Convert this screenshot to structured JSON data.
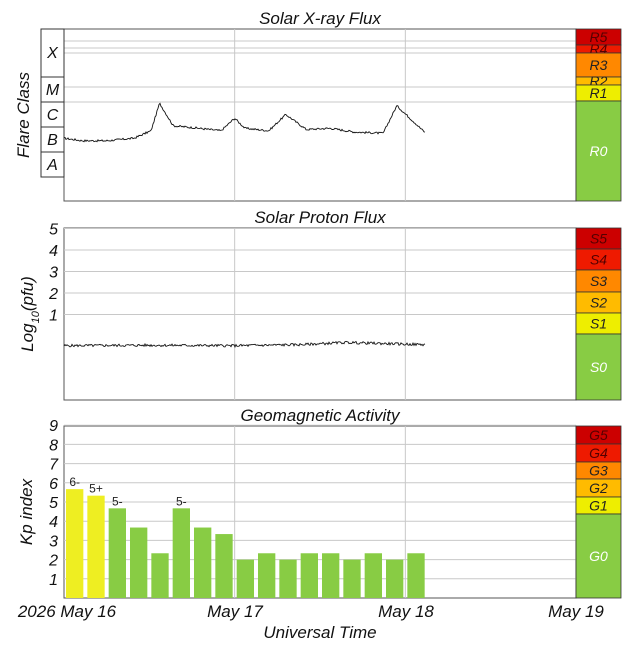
{
  "chart_data": [
    {
      "type": "area",
      "title": "Solar X-ray Flux",
      "ylabel": "Flare Class",
      "class_labels": [
        "X",
        "M",
        "C",
        "B",
        "A"
      ],
      "scale": [
        {
          "label": "R5",
          "color": "#cc0000"
        },
        {
          "label": "R4",
          "color": "#ee1a00"
        },
        {
          "label": "R3",
          "color": "#ff8800"
        },
        {
          "label": "R2",
          "color": "#ffbb00"
        },
        {
          "label": "R1",
          "color": "#eeee00"
        },
        {
          "label": "R0",
          "color": "#88cc44"
        }
      ],
      "x_days": [
        0,
        0.11,
        0.25,
        0.41,
        0.51,
        0.56,
        0.64,
        0.79,
        0.92,
        1.0,
        1.06,
        1.2,
        1.3,
        1.42,
        1.56,
        1.7,
        1.87,
        1.95,
        2.12
      ],
      "y_class": [
        2.55,
        2.45,
        2.45,
        2.55,
        2.85,
        3.95,
        3.05,
        2.95,
        2.85,
        3.35,
        2.95,
        2.85,
        3.5,
        2.9,
        2.95,
        2.8,
        2.75,
        3.85,
        2.75
      ]
    },
    {
      "type": "area",
      "title": "Solar Proton Flux",
      "ylabel": "Log10(pfu)",
      "ylabel_main": "Log",
      "ylabel_sub": "10",
      "ylabel_tail": "(pfu)",
      "ytick_labels": [
        "5",
        "4",
        "3",
        "2",
        "1"
      ],
      "ylim": [
        -1.8,
        6
      ],
      "scale": [
        {
          "label": "S5",
          "color": "#cc0000"
        },
        {
          "label": "S4",
          "color": "#ee1a00"
        },
        {
          "label": "S3",
          "color": "#ff8800"
        },
        {
          "label": "S2",
          "color": "#ffbb00"
        },
        {
          "label": "S1",
          "color": "#eeee00"
        },
        {
          "label": "S0",
          "color": "#88cc44"
        }
      ],
      "x_days": [
        0,
        0.5,
        1.0,
        1.4,
        1.65,
        2.0,
        2.12
      ],
      "y_log": [
        -0.45,
        -0.43,
        -0.45,
        -0.4,
        -0.3,
        -0.38,
        -0.4
      ]
    },
    {
      "type": "bar",
      "title": "Geomagnetic Activity",
      "ylabel": "Kp index",
      "ytick_labels": [
        "9",
        "8",
        "7",
        "6",
        "5",
        "4",
        "3",
        "2",
        "1"
      ],
      "ylim": [
        0,
        10
      ],
      "bar_hours": 3,
      "start_hour": 0,
      "values": [
        5.67,
        5.33,
        4.67,
        3.67,
        2.33,
        4.67,
        3.67,
        3.33,
        2.0,
        2.33,
        2.0,
        2.33,
        2.33,
        2.0,
        2.33,
        2.0,
        2.33
      ],
      "value_labels": [
        "6-",
        "5+",
        "5-",
        "",
        "",
        "5-",
        "",
        "",
        "",
        "",
        "",
        "",
        "",
        "",
        "",
        "",
        ""
      ],
      "yellow_color": "#eeee22",
      "green_color": "#88cc44",
      "scale": [
        {
          "label": "G5",
          "color": "#cc0000"
        },
        {
          "label": "G4",
          "color": "#ee1a00"
        },
        {
          "label": "G3",
          "color": "#ff8800"
        },
        {
          "label": "G2",
          "color": "#ffbb00"
        },
        {
          "label": "G1",
          "color": "#eeee00"
        },
        {
          "label": "G0",
          "color": "#88cc44"
        }
      ]
    }
  ],
  "x_axis": {
    "title": "Universal Time",
    "labels": [
      "2026 May 16",
      "May 17",
      "May 18",
      "May 19"
    ]
  }
}
